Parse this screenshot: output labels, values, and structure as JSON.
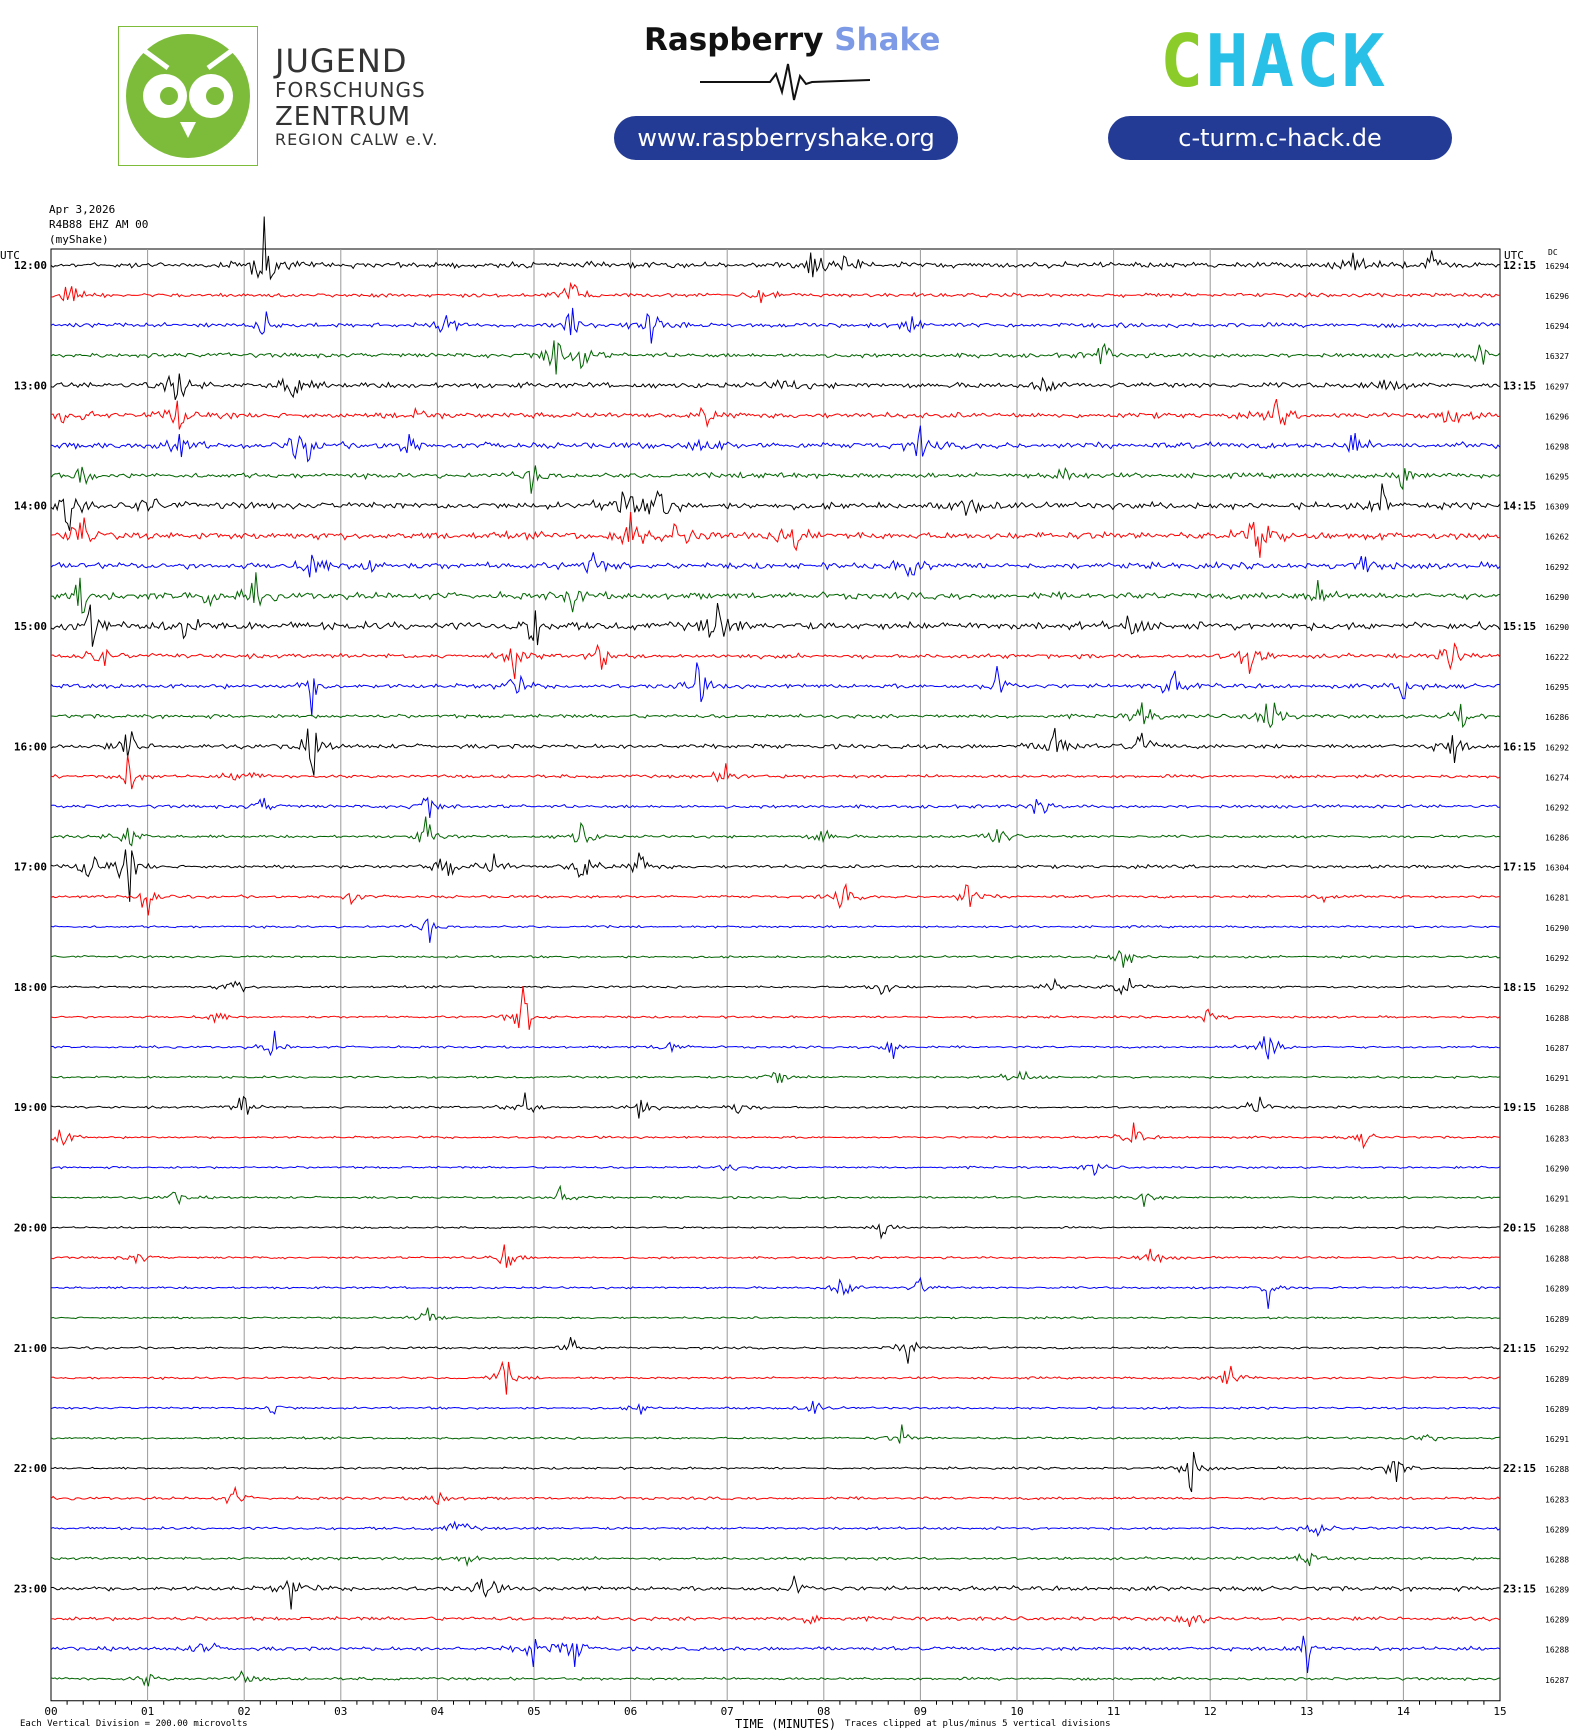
{
  "header": {
    "jfz": {
      "line1": "JUGEND",
      "line2": "FORSCHUNGS",
      "line3": "ZENTRUM",
      "line4": "REGION CALW e.V.",
      "color": "#7cbc3a",
      "logo_icon": "owl-icon"
    },
    "raspberry_shake": {
      "word1": "Raspberry",
      "word2": "Shake",
      "url": "www.raspberryshake.org",
      "wave_icon": "seismic-wave-icon"
    },
    "chack": {
      "logo_text": "CHACK",
      "url": "c-turm.c-hack.de",
      "colors": [
        "#8ccc2a",
        "#29c0e8"
      ]
    },
    "pill_color": "#243b95"
  },
  "chart_data": {
    "type": "line",
    "subtype": "helicorder",
    "meta": {
      "date": "Apr 3,2026",
      "station": "R4B88 EHZ AM 00",
      "source": "(myShake)"
    },
    "utc_left": "UTC",
    "utc_right": "UTC",
    "dc_label": "DC",
    "xlabel": "TIME (MINUTES)",
    "xlim": [
      0,
      15
    ],
    "x_ticks": [
      "00",
      "01",
      "02",
      "03",
      "04",
      "05",
      "06",
      "07",
      "08",
      "09",
      "10",
      "11",
      "12",
      "13",
      "14",
      "15"
    ],
    "left_labels": [
      "12:00",
      "13:00",
      "14:00",
      "15:00",
      "16:00",
      "17:00",
      "18:00",
      "19:00",
      "20:00",
      "21:00",
      "22:00",
      "23:00"
    ],
    "right_labels": [
      "12:15",
      "13:15",
      "14:15",
      "15:15",
      "16:15",
      "17:15",
      "18:15",
      "19:15",
      "20:15",
      "21:15",
      "22:15",
      "23:15"
    ],
    "colors": [
      "#000000",
      "#ff0000",
      "#0000ff",
      "#006400"
    ],
    "minutes_per_line": 15,
    "scale_note": "Each Vertical Division =  200.00 microvolts",
    "clip_note": "Traces clipped at plus/minus 5 vertical divisions",
    "rows": [
      {
        "dc": "16294",
        "noise": 1.0,
        "events": [
          [
            2.2,
            40
          ],
          [
            7.9,
            20
          ],
          [
            8.3,
            16
          ],
          [
            13.5,
            16
          ],
          [
            14.3,
            12
          ]
        ]
      },
      {
        "dc": "16296",
        "noise": 0.7,
        "events": [
          [
            0.2,
            10
          ],
          [
            5.4,
            25
          ],
          [
            7.4,
            14
          ]
        ]
      },
      {
        "dc": "16294",
        "noise": 0.8,
        "events": [
          [
            2.2,
            12
          ],
          [
            4.1,
            10
          ],
          [
            5.4,
            18
          ],
          [
            6.2,
            22
          ],
          [
            8.9,
            10
          ]
        ]
      },
      {
        "dc": "16327",
        "noise": 0.8,
        "events": [
          [
            5.2,
            30
          ],
          [
            5.5,
            18
          ],
          [
            10.9,
            14
          ],
          [
            14.8,
            10
          ]
        ]
      },
      {
        "dc": "16297",
        "noise": 1.0,
        "events": [
          [
            1.3,
            18
          ],
          [
            2.5,
            22
          ],
          [
            7.6,
            12
          ],
          [
            10.3,
            12
          ],
          [
            13.8,
            10
          ]
        ]
      },
      {
        "dc": "16296",
        "noise": 1.0,
        "events": [
          [
            0.2,
            18
          ],
          [
            1.3,
            22
          ],
          [
            3.8,
            10
          ],
          [
            6.8,
            12
          ],
          [
            12.7,
            14
          ],
          [
            14.5,
            16
          ]
        ]
      },
      {
        "dc": "16298",
        "noise": 1.1,
        "events": [
          [
            1.3,
            20
          ],
          [
            2.6,
            28
          ],
          [
            3.7,
            12
          ],
          [
            6.8,
            16
          ],
          [
            9.0,
            14
          ],
          [
            13.5,
            12
          ]
        ]
      },
      {
        "dc": "16295",
        "noise": 0.9,
        "events": [
          [
            0.3,
            16
          ],
          [
            5.0,
            14
          ],
          [
            7.4,
            12
          ],
          [
            10.5,
            12
          ],
          [
            14.0,
            14
          ]
        ]
      },
      {
        "dc": "16309",
        "noise": 1.2,
        "events": [
          [
            0.2,
            28
          ],
          [
            1.0,
            14
          ],
          [
            5.9,
            26
          ],
          [
            6.3,
            30
          ],
          [
            9.5,
            14
          ],
          [
            13.8,
            16
          ]
        ]
      },
      {
        "dc": "16262",
        "noise": 1.3,
        "events": [
          [
            0.3,
            30
          ],
          [
            6.0,
            30
          ],
          [
            6.5,
            26
          ],
          [
            7.7,
            24
          ],
          [
            12.5,
            30
          ]
        ]
      },
      {
        "dc": "16292",
        "noise": 1.1,
        "events": [
          [
            2.7,
            24
          ],
          [
            3.3,
            12
          ],
          [
            5.6,
            14
          ],
          [
            8.9,
            16
          ],
          [
            13.6,
            14
          ]
        ]
      },
      {
        "dc": "16290",
        "noise": 1.2,
        "events": [
          [
            0.3,
            26
          ],
          [
            1.6,
            18
          ],
          [
            2.1,
            16
          ],
          [
            5.4,
            14
          ],
          [
            13.1,
            14
          ]
        ]
      },
      {
        "dc": "16290",
        "noise": 1.4,
        "events": [
          [
            0.4,
            30
          ],
          [
            1.4,
            20
          ],
          [
            5.0,
            22
          ],
          [
            6.9,
            34
          ],
          [
            11.2,
            14
          ]
        ]
      },
      {
        "dc": "16222",
        "noise": 0.8,
        "events": [
          [
            0.5,
            16
          ],
          [
            4.8,
            14
          ],
          [
            5.7,
            12
          ],
          [
            12.4,
            26
          ],
          [
            14.5,
            16
          ]
        ]
      },
      {
        "dc": "16295",
        "noise": 0.8,
        "events": [
          [
            2.7,
            18
          ],
          [
            4.8,
            16
          ],
          [
            6.7,
            20
          ],
          [
            9.8,
            20
          ],
          [
            11.6,
            18
          ],
          [
            14.0,
            14
          ]
        ]
      },
      {
        "dc": "16286",
        "noise": 0.7,
        "events": [
          [
            11.3,
            18
          ],
          [
            12.6,
            30
          ],
          [
            14.6,
            18
          ]
        ]
      },
      {
        "dc": "16292",
        "noise": 0.8,
        "events": [
          [
            0.8,
            18
          ],
          [
            2.7,
            24
          ],
          [
            10.4,
            30
          ],
          [
            11.3,
            14
          ],
          [
            14.5,
            20
          ]
        ]
      },
      {
        "dc": "16274",
        "noise": 0.6,
        "events": [
          [
            0.8,
            18
          ],
          [
            2.0,
            14
          ],
          [
            7.0,
            14
          ]
        ]
      },
      {
        "dc": "16292",
        "noise": 0.6,
        "events": [
          [
            2.2,
            10
          ],
          [
            3.9,
            18
          ],
          [
            10.2,
            14
          ]
        ]
      },
      {
        "dc": "16286",
        "noise": 0.5,
        "events": [
          [
            0.8,
            22
          ],
          [
            3.9,
            18
          ],
          [
            5.5,
            18
          ],
          [
            8.0,
            12
          ],
          [
            9.8,
            22
          ]
        ]
      },
      {
        "dc": "16304",
        "noise": 0.6,
        "events": [
          [
            0.4,
            20
          ],
          [
            0.8,
            26
          ],
          [
            4.1,
            18
          ],
          [
            4.6,
            14
          ],
          [
            5.5,
            26
          ],
          [
            6.1,
            16
          ]
        ]
      },
      {
        "dc": "16281",
        "noise": 0.5,
        "events": [
          [
            1.0,
            22
          ],
          [
            3.1,
            10
          ],
          [
            8.2,
            14
          ],
          [
            9.5,
            18
          ],
          [
            13.2,
            10
          ]
        ]
      },
      {
        "dc": "16290",
        "noise": 0.4,
        "events": [
          [
            3.9,
            12
          ]
        ]
      },
      {
        "dc": "16292",
        "noise": 0.4,
        "events": [
          [
            11.1,
            16
          ]
        ]
      },
      {
        "dc": "16292",
        "noise": 0.4,
        "events": [
          [
            1.9,
            12
          ],
          [
            8.6,
            12
          ],
          [
            10.4,
            14
          ],
          [
            11.1,
            16
          ]
        ]
      },
      {
        "dc": "16288",
        "noise": 0.4,
        "events": [
          [
            1.7,
            10
          ],
          [
            4.9,
            30
          ],
          [
            12.0,
            12
          ]
        ]
      },
      {
        "dc": "16287",
        "noise": 0.4,
        "events": [
          [
            2.3,
            14
          ],
          [
            6.4,
            10
          ],
          [
            8.7,
            14
          ],
          [
            12.6,
            26
          ]
        ]
      },
      {
        "dc": "16291",
        "noise": 0.4,
        "events": [
          [
            7.5,
            14
          ],
          [
            10.0,
            16
          ]
        ]
      },
      {
        "dc": "16288",
        "noise": 0.4,
        "events": [
          [
            2.0,
            14
          ],
          [
            4.9,
            16
          ],
          [
            6.1,
            14
          ],
          [
            7.1,
            14
          ],
          [
            12.5,
            14
          ]
        ]
      },
      {
        "dc": "16283",
        "noise": 0.4,
        "events": [
          [
            0.1,
            16
          ],
          [
            11.2,
            14
          ],
          [
            13.6,
            8
          ]
        ]
      },
      {
        "dc": "16290",
        "noise": 0.4,
        "events": [
          [
            7.0,
            6
          ],
          [
            10.8,
            8
          ]
        ]
      },
      {
        "dc": "16291",
        "noise": 0.4,
        "events": [
          [
            1.3,
            8
          ],
          [
            5.3,
            16
          ],
          [
            11.3,
            12
          ]
        ]
      },
      {
        "dc": "16288",
        "noise": 0.35,
        "events": [
          [
            8.6,
            12
          ]
        ]
      },
      {
        "dc": "16288",
        "noise": 0.4,
        "events": [
          [
            0.9,
            8
          ],
          [
            4.7,
            20
          ],
          [
            11.4,
            12
          ]
        ]
      },
      {
        "dc": "16289",
        "noise": 0.4,
        "events": [
          [
            8.2,
            16
          ],
          [
            9.0,
            10
          ],
          [
            12.6,
            16
          ]
        ]
      },
      {
        "dc": "16289",
        "noise": 0.35,
        "events": [
          [
            3.9,
            14
          ]
        ]
      },
      {
        "dc": "16292",
        "noise": 0.4,
        "events": [
          [
            5.4,
            14
          ],
          [
            8.9,
            18
          ]
        ]
      },
      {
        "dc": "16289",
        "noise": 0.4,
        "events": [
          [
            4.7,
            18
          ],
          [
            12.2,
            18
          ]
        ]
      },
      {
        "dc": "16289",
        "noise": 0.4,
        "events": [
          [
            2.3,
            8
          ],
          [
            6.1,
            6
          ],
          [
            7.9,
            8
          ]
        ]
      },
      {
        "dc": "16291",
        "noise": 0.4,
        "events": [
          [
            8.8,
            10
          ],
          [
            14.2,
            10
          ]
        ]
      },
      {
        "dc": "16288",
        "noise": 0.4,
        "events": [
          [
            11.8,
            22
          ],
          [
            13.9,
            18
          ]
        ]
      },
      {
        "dc": "16283",
        "noise": 0.5,
        "events": [
          [
            1.9,
            10
          ],
          [
            4.0,
            10
          ]
        ]
      },
      {
        "dc": "16289",
        "noise": 0.5,
        "events": [
          [
            4.2,
            14
          ],
          [
            13.1,
            12
          ]
        ]
      },
      {
        "dc": "16288",
        "noise": 0.5,
        "events": [
          [
            4.3,
            12
          ],
          [
            13.0,
            10
          ]
        ]
      },
      {
        "dc": "16289",
        "noise": 0.8,
        "events": [
          [
            2.5,
            20
          ],
          [
            4.5,
            16
          ],
          [
            7.7,
            12
          ]
        ]
      },
      {
        "dc": "16289",
        "noise": 0.7,
        "events": [
          [
            7.9,
            10
          ],
          [
            11.8,
            16
          ]
        ]
      },
      {
        "dc": "16288",
        "noise": 0.7,
        "events": [
          [
            1.6,
            12
          ],
          [
            5.0,
            22
          ],
          [
            5.4,
            20
          ],
          [
            13.0,
            16
          ]
        ]
      },
      {
        "dc": "16287",
        "noise": 0.5,
        "events": [
          [
            1.0,
            8
          ],
          [
            2.0,
            8
          ]
        ]
      }
    ]
  }
}
